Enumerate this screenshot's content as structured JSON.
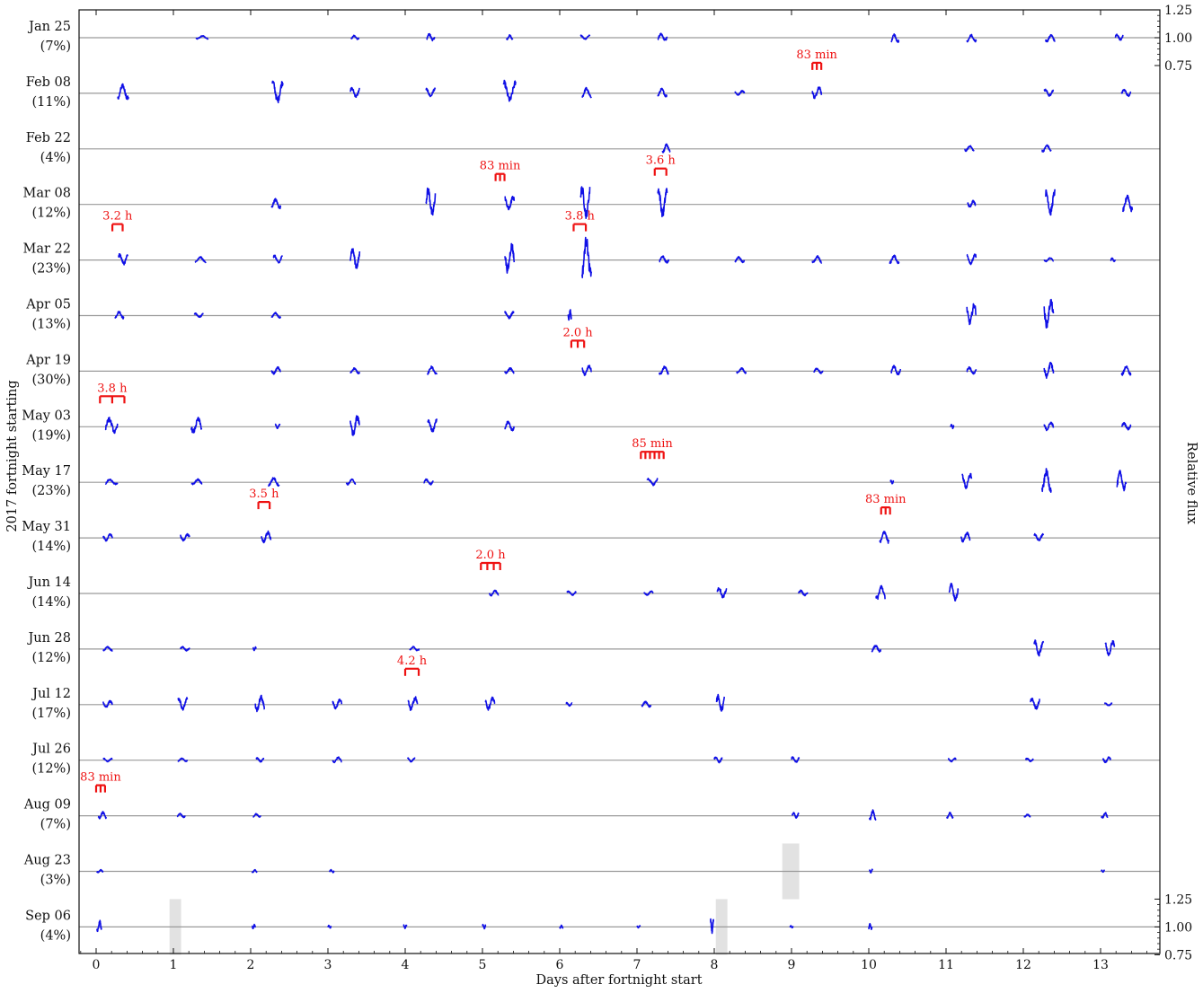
{
  "chart_data": {
    "type": "line",
    "xlabel": "Days after fortnight start",
    "ylabel": "2017 fortnight starting",
    "ylabel_right": "Relative flux",
    "xlim": [
      -0.25,
      13.9
    ],
    "x_ticks": [
      "0",
      "1",
      "2",
      "3",
      "4",
      "5",
      "6",
      "7",
      "8",
      "9",
      "10",
      "11",
      "12",
      "13"
    ],
    "right_ticks_top": [
      "1.25",
      "1.00",
      "0.75"
    ],
    "right_ticks_bottom": [
      "1.25",
      "1.00",
      "0.75"
    ],
    "colors": {
      "flux": "#1010e6",
      "annotation": "#ee1111",
      "baseline": "#9a9a9a",
      "gap": "#e2e2e2"
    },
    "fortnights": [
      {
        "date": "Jan 25",
        "pct": "(7%)",
        "segments": [
          [
            1.37,
            0.08,
            0.05
          ],
          [
            3.35,
            0.05,
            0.06
          ],
          [
            4.33,
            0.05,
            0.1
          ],
          [
            5.35,
            0.04,
            0.07
          ],
          [
            6.33,
            0.06,
            0.06
          ],
          [
            7.33,
            0.06,
            0.1
          ],
          [
            10.34,
            0.05,
            -0.12
          ],
          [
            11.33,
            0.06,
            -0.1
          ],
          [
            12.35,
            0.06,
            -0.1
          ],
          [
            13.24,
            0.05,
            0.09
          ]
        ],
        "annotations": []
      },
      {
        "date": "Feb 08",
        "pct": "(11%)",
        "segments": [
          [
            0.35,
            0.07,
            0.22
          ],
          [
            2.35,
            0.07,
            0.32
          ],
          [
            3.35,
            0.06,
            0.14
          ],
          [
            4.33,
            0.06,
            0.12
          ],
          [
            5.35,
            0.08,
            0.3
          ],
          [
            6.35,
            0.06,
            0.14
          ],
          [
            7.33,
            0.06,
            0.12
          ],
          [
            8.33,
            0.06,
            0.07
          ],
          [
            9.33,
            0.06,
            0.18
          ],
          [
            12.33,
            0.06,
            0.1
          ],
          [
            13.33,
            0.06,
            0.1
          ]
        ],
        "annotations": [
          {
            "label": "83 min",
            "x": 9.27,
            "period_days": 0.0576,
            "n": 2
          }
        ]
      },
      {
        "date": "Feb 22",
        "pct": "(4%)",
        "segments": [
          [
            7.38,
            0.05,
            0.12
          ],
          [
            11.3,
            0.06,
            0.08
          ],
          [
            12.3,
            0.06,
            0.1
          ]
        ],
        "annotations": []
      },
      {
        "date": "Mar 08",
        "pct": "(12%)",
        "segments": [
          [
            2.33,
            0.06,
            0.14
          ],
          [
            4.33,
            0.06,
            0.42
          ],
          [
            5.35,
            0.06,
            0.2
          ],
          [
            6.33,
            0.06,
            0.45
          ],
          [
            7.33,
            0.06,
            0.42
          ],
          [
            11.33,
            0.05,
            0.1
          ],
          [
            12.35,
            0.06,
            0.35
          ],
          [
            13.35,
            0.06,
            0.25
          ]
        ],
        "annotations": [
          {
            "label": "83 min",
            "x": 5.17,
            "period_days": 0.0576,
            "n": 2
          },
          {
            "label": "3.6 h",
            "x": 7.23,
            "period_days": 0.15,
            "n": 1
          }
        ]
      },
      {
        "date": "Mar 22",
        "pct": "(23%)",
        "segments": [
          [
            0.35,
            0.06,
            0.15
          ],
          [
            1.35,
            0.07,
            0.08
          ],
          [
            2.35,
            0.06,
            0.12
          ],
          [
            3.35,
            0.06,
            0.3
          ],
          [
            5.35,
            0.06,
            0.42
          ],
          [
            6.35,
            0.06,
            0.58
          ],
          [
            7.35,
            0.06,
            0.1
          ],
          [
            8.33,
            0.06,
            0.08
          ],
          [
            9.33,
            0.06,
            0.1
          ],
          [
            10.33,
            0.06,
            0.12
          ],
          [
            11.33,
            0.06,
            0.14
          ],
          [
            12.33,
            0.06,
            0.06
          ],
          [
            13.16,
            0.03,
            0.05
          ]
        ],
        "annotations": [
          {
            "label": "3.2 h",
            "x": 0.21,
            "period_days": 0.133,
            "n": 1
          },
          {
            "label": "3.8 h",
            "x": 6.18,
            "period_days": 0.158,
            "n": 1
          }
        ]
      },
      {
        "date": "Apr 05",
        "pct": "(13%)",
        "segments": [
          [
            0.3,
            0.06,
            0.1
          ],
          [
            1.33,
            0.06,
            0.06
          ],
          [
            2.33,
            0.06,
            0.08
          ],
          [
            5.35,
            0.06,
            0.1
          ],
          [
            6.13,
            0.02,
            0.15
          ],
          [
            11.33,
            0.06,
            0.3
          ],
          [
            12.33,
            0.06,
            0.4
          ]
        ],
        "annotations": []
      },
      {
        "date": "Apr 19",
        "pct": "(30%)",
        "segments": [
          [
            2.33,
            0.06,
            0.1
          ],
          [
            3.35,
            0.06,
            0.08
          ],
          [
            4.35,
            0.06,
            0.12
          ],
          [
            5.35,
            0.06,
            0.08
          ],
          [
            6.35,
            0.06,
            0.14
          ],
          [
            7.35,
            0.06,
            0.12
          ],
          [
            8.35,
            0.06,
            0.08
          ],
          [
            9.35,
            0.06,
            0.08
          ],
          [
            10.35,
            0.06,
            0.14
          ],
          [
            11.33,
            0.06,
            0.1
          ],
          [
            12.33,
            0.06,
            0.22
          ],
          [
            13.33,
            0.06,
            0.14
          ]
        ],
        "annotations": [
          {
            "label": "2.0 h",
            "x": 6.15,
            "period_days": 0.083,
            "n": 2
          }
        ]
      },
      {
        "date": "May 03",
        "pct": "(19%)",
        "segments": [
          [
            0.2,
            0.08,
            0.22
          ],
          [
            1.3,
            0.07,
            0.22
          ],
          [
            2.35,
            0.03,
            0.06
          ],
          [
            3.35,
            0.06,
            0.3
          ],
          [
            4.35,
            0.06,
            0.18
          ],
          [
            5.35,
            0.06,
            0.14
          ],
          [
            11.08,
            0.02,
            0.06
          ],
          [
            12.33,
            0.06,
            0.12
          ],
          [
            13.33,
            0.06,
            0.1
          ]
        ],
        "annotations": [
          {
            "label": "3.8 h",
            "x": 0.05,
            "period_days": 0.158,
            "n": 2
          }
        ]
      },
      {
        "date": "May 17",
        "pct": "(23%)",
        "segments": [
          [
            0.2,
            0.08,
            0.08
          ],
          [
            1.3,
            0.07,
            0.08
          ],
          [
            2.3,
            0.07,
            0.12
          ],
          [
            3.3,
            0.06,
            0.08
          ],
          [
            4.3,
            0.06,
            0.08
          ],
          [
            7.2,
            0.07,
            0.1
          ],
          [
            10.3,
            0.02,
            0.05
          ],
          [
            11.27,
            0.06,
            0.22
          ],
          [
            12.3,
            0.06,
            0.32
          ],
          [
            13.27,
            0.06,
            0.28
          ]
        ],
        "annotations": [
          {
            "label": "85 min",
            "x": 7.05,
            "period_days": 0.059,
            "n": 5
          }
        ]
      },
      {
        "date": "May 31",
        "pct": "(14%)",
        "segments": [
          [
            0.15,
            0.06,
            0.1
          ],
          [
            1.15,
            0.06,
            0.1
          ],
          [
            2.2,
            0.06,
            0.16
          ],
          [
            10.2,
            0.06,
            0.18
          ],
          [
            11.25,
            0.06,
            0.14
          ],
          [
            12.2,
            0.06,
            0.1
          ]
        ],
        "annotations": [
          {
            "label": "3.5 h",
            "x": 2.1,
            "period_days": 0.146,
            "n": 1
          },
          {
            "label": "83 min",
            "x": 10.16,
            "period_days": 0.0576,
            "n": 2
          }
        ]
      },
      {
        "date": "Jun 14",
        "pct": "(14%)",
        "segments": [
          [
            5.15,
            0.06,
            0.08
          ],
          [
            6.15,
            0.06,
            0.06
          ],
          [
            7.15,
            0.06,
            0.06
          ],
          [
            8.1,
            0.06,
            0.16
          ],
          [
            9.15,
            0.06,
            0.08
          ],
          [
            10.15,
            0.06,
            0.2
          ],
          [
            11.1,
            0.06,
            0.24
          ]
        ],
        "annotations": [
          {
            "label": "2.0 h",
            "x": 4.98,
            "period_days": 0.083,
            "n": 3
          }
        ]
      },
      {
        "date": "Jun 28",
        "pct": "(12%)",
        "segments": [
          [
            0.15,
            0.06,
            0.06
          ],
          [
            1.15,
            0.06,
            0.06
          ],
          [
            2.05,
            0.02,
            0.05
          ],
          [
            4.12,
            0.06,
            0.06
          ],
          [
            10.1,
            0.06,
            0.1
          ],
          [
            12.2,
            0.06,
            0.22
          ],
          [
            13.12,
            0.06,
            0.22
          ]
        ],
        "annotations": []
      },
      {
        "date": "Jul 12",
        "pct": "(17%)",
        "segments": [
          [
            0.15,
            0.06,
            0.1
          ],
          [
            1.12,
            0.06,
            0.18
          ],
          [
            2.12,
            0.06,
            0.22
          ],
          [
            3.12,
            0.06,
            0.14
          ],
          [
            4.1,
            0.06,
            0.2
          ],
          [
            5.1,
            0.06,
            0.18
          ],
          [
            6.12,
            0.04,
            0.05
          ],
          [
            7.12,
            0.06,
            0.08
          ],
          [
            8.08,
            0.05,
            0.24
          ],
          [
            12.15,
            0.06,
            0.16
          ],
          [
            13.1,
            0.05,
            0.04
          ]
        ],
        "annotations": [
          {
            "label": "4.2 h",
            "x": 4.0,
            "period_days": 0.175,
            "n": 1
          }
        ]
      },
      {
        "date": "Jul 26",
        "pct": "(12%)",
        "segments": [
          [
            0.15,
            0.06,
            0.05
          ],
          [
            1.12,
            0.06,
            0.05
          ],
          [
            2.12,
            0.05,
            0.06
          ],
          [
            3.12,
            0.06,
            0.08
          ],
          [
            4.08,
            0.05,
            0.06
          ],
          [
            8.05,
            0.05,
            0.08
          ],
          [
            9.05,
            0.05,
            0.08
          ],
          [
            11.08,
            0.05,
            0.05
          ],
          [
            12.08,
            0.05,
            0.05
          ],
          [
            13.08,
            0.05,
            0.08
          ]
        ],
        "annotations": []
      },
      {
        "date": "Aug 09",
        "pct": "(7%)",
        "segments": [
          [
            0.08,
            0.05,
            0.1
          ],
          [
            1.1,
            0.05,
            0.06
          ],
          [
            2.08,
            0.05,
            0.05
          ],
          [
            9.05,
            0.04,
            0.08
          ],
          [
            10.05,
            0.04,
            0.14
          ],
          [
            11.05,
            0.04,
            0.08
          ],
          [
            12.05,
            0.04,
            0.04
          ],
          [
            13.05,
            0.04,
            0.08
          ]
        ],
        "annotations": [
          {
            "label": "83 min",
            "x": 0.0,
            "period_days": 0.0576,
            "n": 2
          }
        ]
      },
      {
        "date": "Aug 23",
        "pct": "(3%)",
        "segments": [
          [
            0.05,
            0.04,
            0.04
          ],
          [
            2.05,
            0.03,
            0.04
          ],
          [
            3.05,
            0.03,
            0.04
          ],
          [
            10.03,
            0.02,
            0.05
          ],
          [
            13.03,
            0.02,
            0.03
          ]
        ],
        "annotations": [],
        "gaps": [
          [
            8.88,
            9.1
          ]
        ]
      },
      {
        "date": "Sep 06",
        "pct": "(4%)",
        "segments": [
          [
            0.04,
            0.03,
            0.16
          ],
          [
            2.04,
            0.02,
            0.06
          ],
          [
            3.02,
            0.02,
            0.04
          ],
          [
            4.0,
            0.02,
            0.05
          ],
          [
            5.02,
            0.02,
            0.06
          ],
          [
            6.02,
            0.02,
            0.04
          ],
          [
            7.02,
            0.02,
            0.03
          ],
          [
            7.97,
            0.02,
            0.2
          ],
          [
            9.0,
            0.02,
            0.03
          ],
          [
            10.02,
            0.02,
            0.08
          ]
        ],
        "annotations": [],
        "gaps": [
          [
            0.95,
            1.1
          ],
          [
            8.02,
            8.17
          ]
        ]
      }
    ]
  }
}
